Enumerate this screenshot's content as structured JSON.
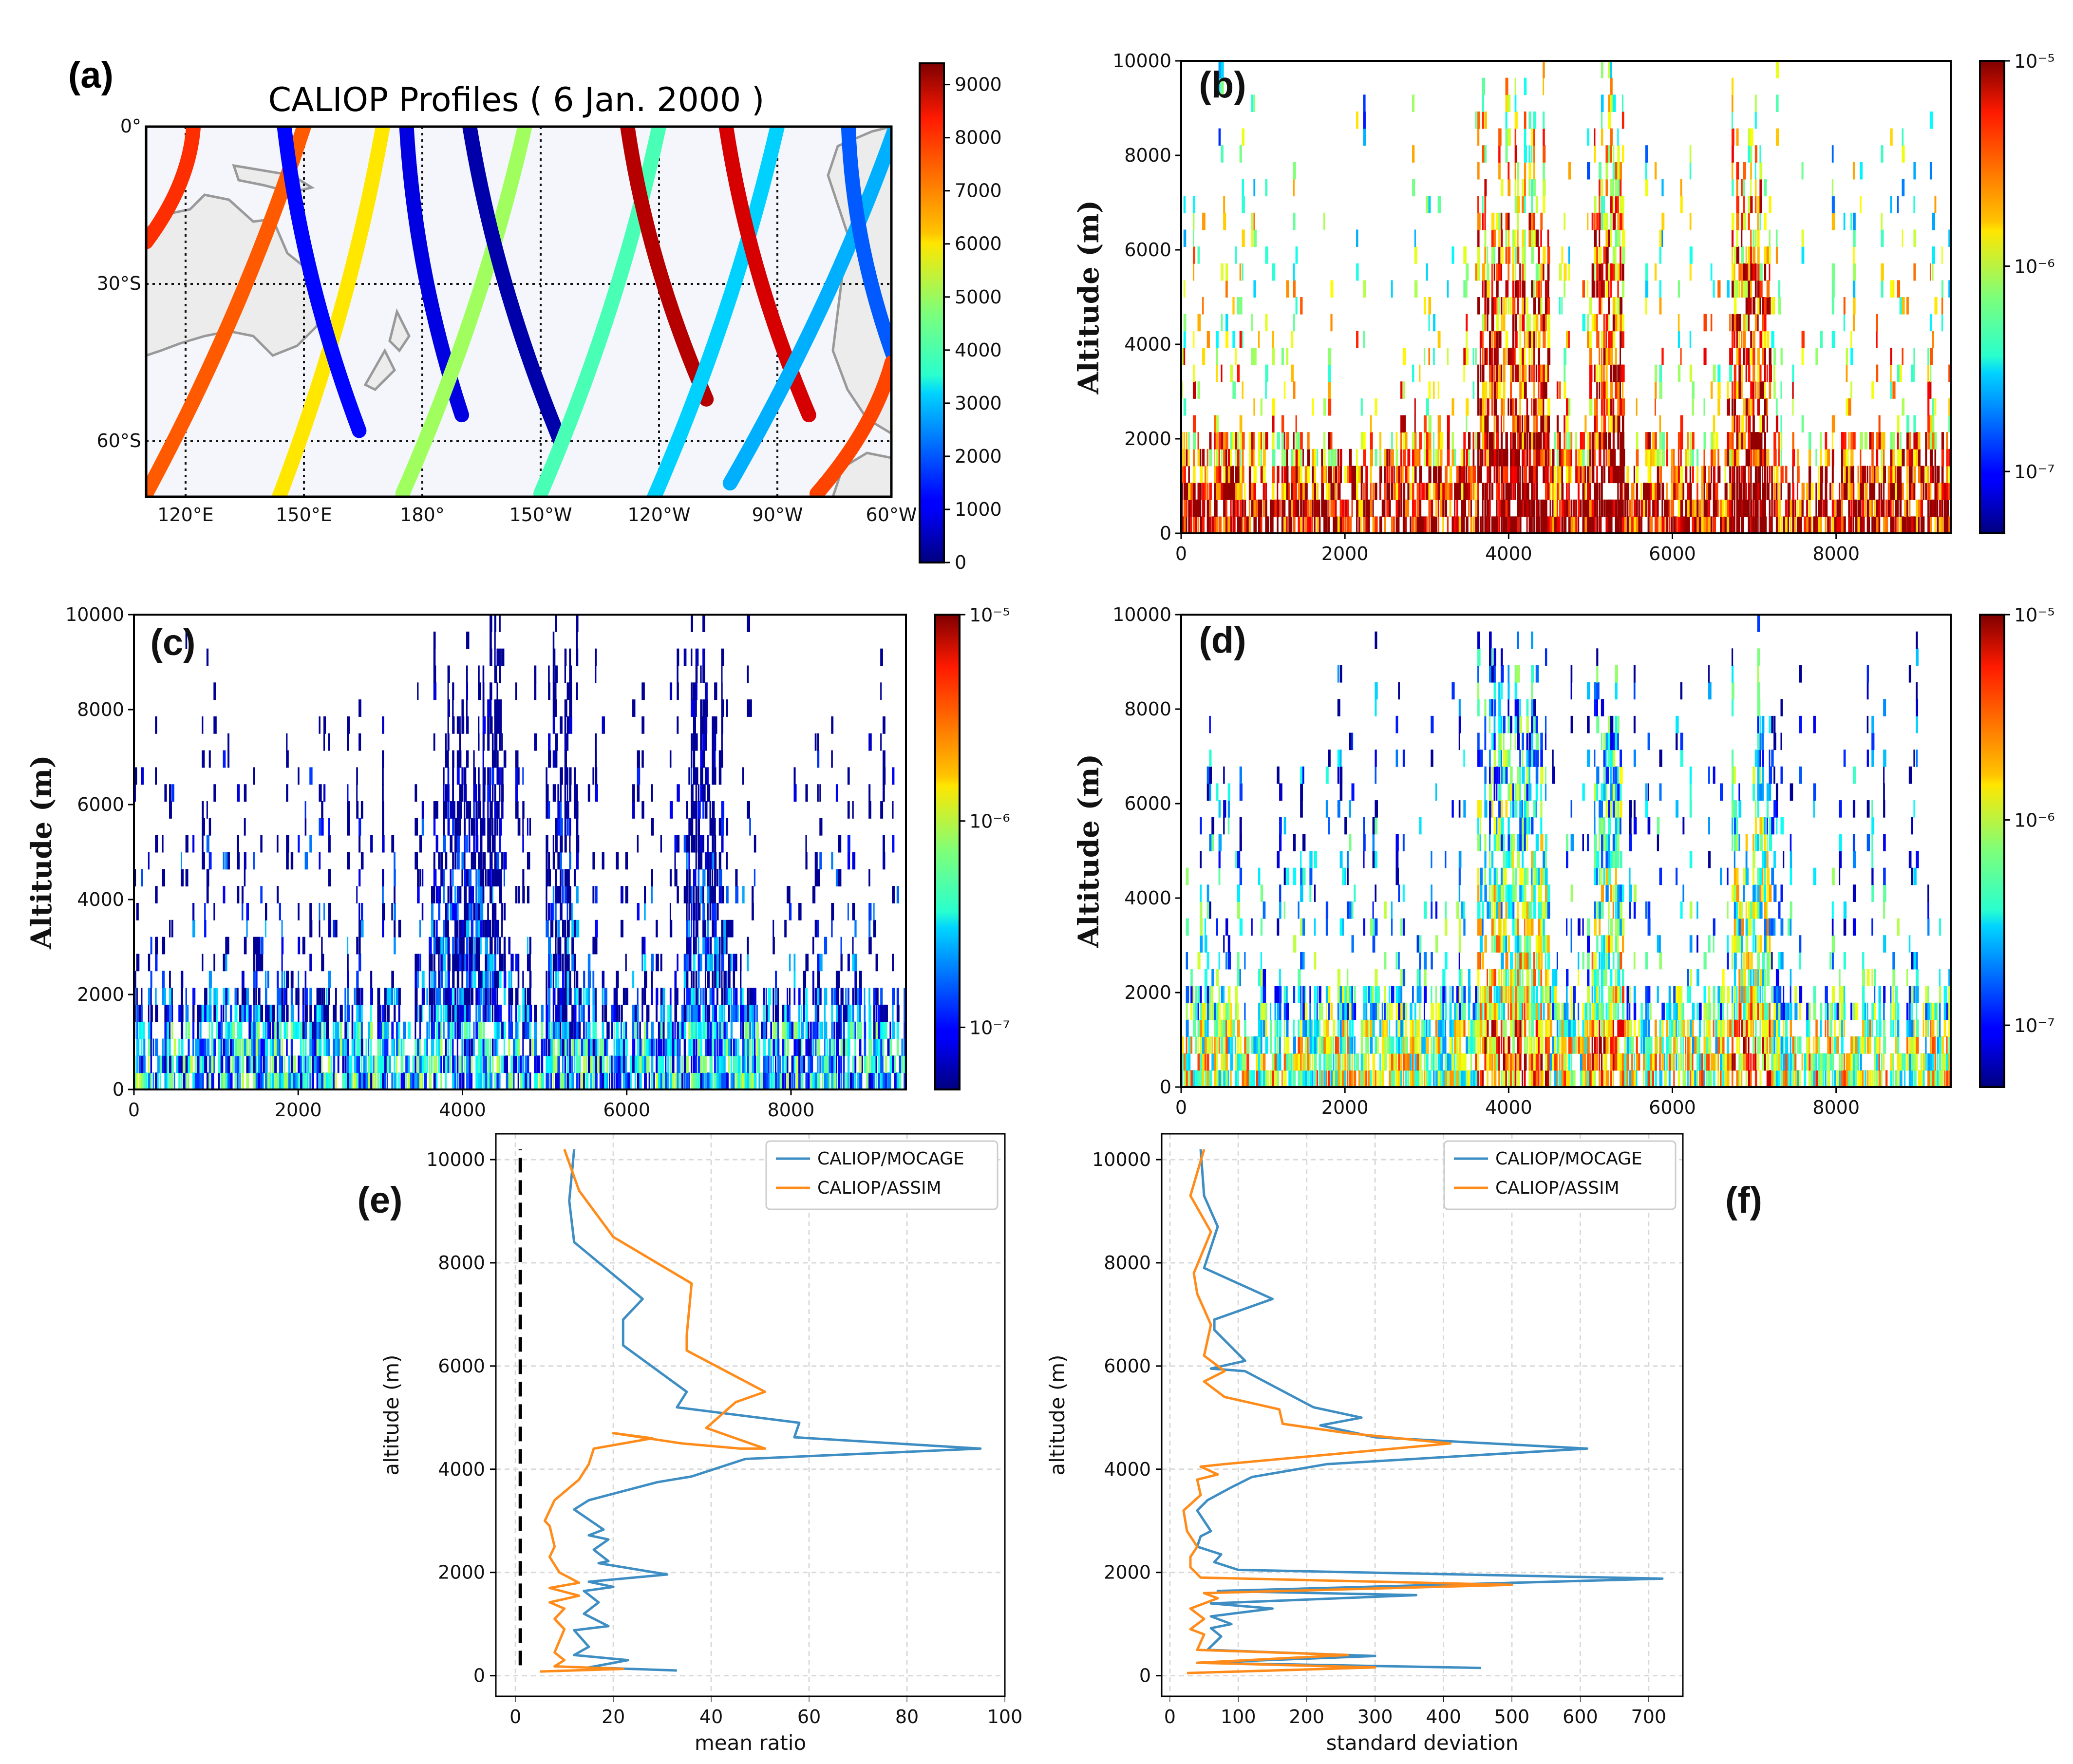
{
  "panel_labels": [
    "(a)",
    "(b)",
    "(c)",
    "(d)",
    "(e)",
    "(f)"
  ],
  "chart_data": [
    {
      "panel": "(a)",
      "type": "scatter",
      "title": "CALIOP Profiles ( 6 Jan. 2000 )",
      "x_ticks": [
        "120°E",
        "150°E",
        "180°",
        "150°W",
        "120°W",
        "90°W",
        "60°W"
      ],
      "y_ticks": [
        "0°",
        "30°S",
        "60°S"
      ],
      "grid": true,
      "colorbar": {
        "ticks": [
          "0",
          "1000",
          "2000",
          "3000",
          "4000",
          "5000",
          "6000",
          "7000",
          "8000",
          "9000"
        ],
        "range": [
          0,
          9400
        ],
        "colormap": "jet"
      },
      "tracks": [
        {
          "lon0": 122,
          "lat0": 0,
          "lon1": 110,
          "lat1": -22,
          "value": 7800
        },
        {
          "lon0": 150,
          "lat0": 0,
          "lon1": 110,
          "lat1": -70,
          "value": 7400
        },
        {
          "lon0": 170,
          "lat0": 0,
          "lon1": 143,
          "lat1": -72,
          "value": 6100
        },
        {
          "lon0": 145,
          "lat0": 0,
          "lon1": 164,
          "lat1": -58,
          "value": 1200
        },
        {
          "lon0": 176,
          "lat0": 0,
          "lon1": 190,
          "lat1": -55,
          "value": 900
        },
        {
          "lon0": 206,
          "lat0": 0,
          "lon1": 175,
          "lat1": -70,
          "value": 5000
        },
        {
          "lon0": 192,
          "lat0": 0,
          "lon1": 215,
          "lat1": -60,
          "value": 400
        },
        {
          "lon0": 240,
          "lat0": 0,
          "lon1": 210,
          "lat1": -70,
          "value": 4200
        },
        {
          "lon0": 232,
          "lat0": 0,
          "lon1": 252,
          "lat1": -52,
          "value": 8900
        },
        {
          "lon0": 270,
          "lat0": 0,
          "lon1": 238,
          "lat1": -72,
          "value": 3100
        },
        {
          "lon0": 257,
          "lat0": 0,
          "lon1": 278,
          "lat1": -55,
          "value": 8600
        },
        {
          "lon0": 300,
          "lat0": 0,
          "lon1": 258,
          "lat1": -68,
          "value": 2800
        },
        {
          "lon0": 288,
          "lat0": 0,
          "lon1": 300,
          "lat1": -45,
          "value": 2000
        },
        {
          "lon0": 299,
          "lat0": -45,
          "lon1": 280,
          "lat1": -70,
          "value": 7600
        }
      ]
    },
    {
      "panel": "(b)",
      "type": "heatmap",
      "ylabel": "Altitude (m)",
      "x_ticks": [
        "0",
        "2000",
        "4000",
        "6000",
        "8000"
      ],
      "y_ticks": [
        "0",
        "2000",
        "4000",
        "6000",
        "8000",
        "10000"
      ],
      "xlim": [
        0,
        9400
      ],
      "ylim": [
        0,
        10000
      ],
      "colorbar": {
        "scale": "log",
        "range": [
          5e-08,
          1e-05
        ],
        "ticks": [
          "10⁻⁷",
          "10⁻⁶",
          "10⁻⁵"
        ]
      },
      "level_bias": 0.8
    },
    {
      "panel": "(c)",
      "type": "heatmap",
      "ylabel": "Altitude (m)",
      "x_ticks": [
        "0",
        "2000",
        "4000",
        "6000",
        "8000"
      ],
      "y_ticks": [
        "0",
        "2000",
        "4000",
        "6000",
        "8000",
        "10000"
      ],
      "xlim": [
        0,
        9400
      ],
      "ylim": [
        0,
        10000
      ],
      "colorbar": {
        "scale": "log",
        "range": [
          5e-08,
          1e-05
        ],
        "ticks": [
          "10⁻⁷",
          "10⁻⁶",
          "10⁻⁵"
        ]
      },
      "level_bias": 0.2
    },
    {
      "panel": "(d)",
      "type": "heatmap",
      "ylabel": "Altitude (m)",
      "x_ticks": [
        "0",
        "2000",
        "4000",
        "6000",
        "8000"
      ],
      "y_ticks": [
        "0",
        "2000",
        "4000",
        "6000",
        "8000",
        "10000"
      ],
      "xlim": [
        0,
        9400
      ],
      "ylim": [
        0,
        10000
      ],
      "colorbar": {
        "scale": "log",
        "range": [
          5e-08,
          1e-05
        ],
        "ticks": [
          "10⁻⁷",
          "10⁻⁶",
          "10⁻⁵"
        ]
      },
      "level_bias": 0.45
    },
    {
      "panel": "(e)",
      "type": "line",
      "xlabel": "mean ratio",
      "ylabel": "altitude (m)",
      "x_ticks": [
        "0",
        "20",
        "40",
        "60",
        "80",
        "100"
      ],
      "y_ticks": [
        "0",
        "2000",
        "4000",
        "6000",
        "8000",
        "10000"
      ],
      "xlim": [
        -4,
        100
      ],
      "ylim": [
        -400,
        10500
      ],
      "grid": true,
      "legend": "top-right",
      "reference_line": {
        "x": 1,
        "style": "dashed"
      },
      "series": [
        {
          "name": "CALIOP/MOCAGE",
          "color": "#3e8ec4",
          "x": [
            33,
            15,
            23,
            12,
            15,
            12,
            19,
            14,
            17,
            14,
            20,
            15,
            31,
            17,
            19,
            16,
            19,
            15,
            18,
            12,
            15,
            19,
            29,
            36,
            47,
            95,
            57,
            58,
            33,
            35,
            22,
            22,
            26,
            12,
            11,
            12
          ],
          "y": [
            100,
            160,
            300,
            400,
            560,
            880,
            960,
            1200,
            1420,
            1640,
            1720,
            1820,
            1960,
            2180,
            2220,
            2440,
            2640,
            2720,
            2830,
            3220,
            3400,
            3500,
            3750,
            3860,
            4200,
            4400,
            4620,
            4900,
            5200,
            5500,
            6400,
            6900,
            7300,
            8400,
            9200,
            10200
          ]
        },
        {
          "name": "CALIOP/ASSIM",
          "color": "#ff8c1a",
          "x": [
            5,
            22,
            8,
            10,
            8,
            10,
            8,
            10,
            7,
            13,
            7,
            13,
            9,
            7,
            8,
            7,
            6,
            7,
            8,
            13,
            15,
            16,
            28,
            20,
            34,
            46,
            51,
            39,
            45,
            51,
            35,
            35,
            36,
            20,
            13,
            10
          ],
          "y": [
            80,
            130,
            180,
            300,
            450,
            900,
            1100,
            1300,
            1420,
            1550,
            1700,
            1800,
            2000,
            2300,
            2500,
            2900,
            3000,
            3200,
            3400,
            3800,
            4100,
            4400,
            4600,
            4700,
            4500,
            4400,
            4400,
            4800,
            5300,
            5500,
            6300,
            6600,
            7600,
            8500,
            9400,
            10200
          ]
        }
      ]
    },
    {
      "panel": "(f)",
      "type": "line",
      "xlabel": "standard deviation",
      "ylabel": "altitude (m)",
      "x_ticks": [
        "0",
        "100",
        "200",
        "300",
        "400",
        "500",
        "600",
        "700"
      ],
      "y_ticks": [
        "0",
        "2000",
        "4000",
        "6000",
        "8000",
        "10000"
      ],
      "xlim": [
        -12,
        750
      ],
      "ylim": [
        -400,
        10500
      ],
      "grid": true,
      "legend": "top-right",
      "series": [
        {
          "name": "CALIOP/MOCAGE",
          "color": "#3e8ec4",
          "x": [
            455,
            40,
            300,
            55,
            75,
            60,
            90,
            60,
            150,
            60,
            360,
            70,
            720,
            100,
            65,
            75,
            40,
            45,
            60,
            40,
            55,
            90,
            120,
            230,
            610,
            300,
            220,
            280,
            210,
            110,
            60,
            110,
            65,
            65,
            150,
            50,
            70,
            50,
            45
          ],
          "y": [
            150,
            250,
            380,
            500,
            760,
            920,
            1000,
            1150,
            1300,
            1400,
            1560,
            1640,
            1880,
            2050,
            2200,
            2350,
            2500,
            2700,
            2800,
            3200,
            3400,
            3650,
            3850,
            4100,
            4400,
            4620,
            4850,
            5000,
            5200,
            5900,
            5950,
            6100,
            6700,
            6900,
            7300,
            7900,
            8700,
            9300,
            10200
          ]
        },
        {
          "name": "CALIOP/ASSIM",
          "color": "#ff8c1a",
          "x": [
            25,
            300,
            40,
            260,
            40,
            50,
            30,
            50,
            30,
            70,
            50,
            500,
            45,
            30,
            30,
            40,
            25,
            20,
            45,
            40,
            70,
            45,
            80,
            410,
            260,
            165,
            160,
            80,
            50,
            80,
            50,
            60,
            40,
            35,
            60,
            30,
            50
          ],
          "y": [
            50,
            160,
            250,
            400,
            500,
            800,
            900,
            1100,
            1300,
            1500,
            1600,
            1760,
            1900,
            2100,
            2300,
            2500,
            2800,
            3200,
            3500,
            3800,
            3900,
            4050,
            4100,
            4500,
            4700,
            4880,
            5160,
            5400,
            5700,
            5900,
            6200,
            6800,
            7400,
            7800,
            8600,
            9300,
            10200
          ]
        }
      ]
    }
  ]
}
